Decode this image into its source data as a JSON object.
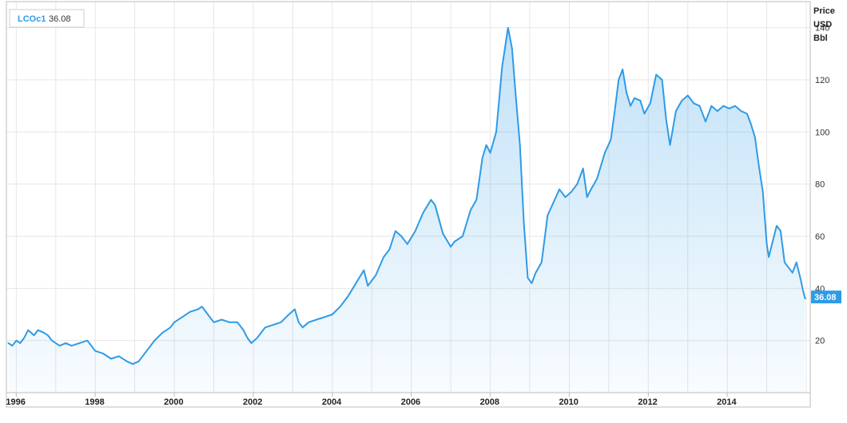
{
  "chart_data": {
    "type": "area",
    "title": "",
    "xlabel": "",
    "ylabel": "Price USD Bbl",
    "unit_lines": [
      "Price",
      "USD",
      "Bbl"
    ],
    "legend": {
      "symbol": "LCOc1",
      "value": "36.08",
      "placement": "top-left"
    },
    "last_value_label": "36.08",
    "xlim": [
      1995.75,
      2016.1
    ],
    "ylim": [
      0,
      150
    ],
    "x_ticks": [
      1996,
      1998,
      2000,
      2002,
      2004,
      2006,
      2008,
      2010,
      2012,
      2014
    ],
    "x_tick_labels": [
      "1996",
      "1998",
      "2000",
      "2002",
      "2004",
      "2006",
      "2008",
      "2010",
      "2012",
      "2014"
    ],
    "y_ticks": [
      20,
      40,
      60,
      80,
      100,
      120,
      140
    ],
    "y_tick_labels": [
      "20",
      "40",
      "60",
      "80",
      "100",
      "120",
      "140"
    ],
    "x_minor_gridlines": [
      1996,
      1997,
      1998,
      1999,
      2000,
      2001,
      2002,
      2003,
      2004,
      2005,
      2006,
      2007,
      2008,
      2009,
      2010,
      2011,
      2012,
      2013,
      2014,
      2015,
      2016
    ],
    "grid": true,
    "colors": {
      "line": "#2e9be6",
      "fill": "#2e9be6",
      "grid": "#e6e6e6",
      "frame": "#bdbdbd",
      "tag": "#2e9be6"
    },
    "series": [
      {
        "name": "LCOc1",
        "x": [
          1995.8,
          1995.9,
          1996.0,
          1996.1,
          1996.2,
          1996.3,
          1996.45,
          1996.55,
          1996.7,
          1996.8,
          1996.9,
          1997.0,
          1997.1,
          1997.25,
          1997.4,
          1997.6,
          1997.8,
          1997.9,
          1998.0,
          1998.2,
          1998.4,
          1998.6,
          1998.8,
          1998.95,
          1999.1,
          1999.3,
          1999.5,
          1999.7,
          1999.9,
          2000.0,
          2000.2,
          2000.4,
          2000.6,
          2000.7,
          2000.85,
          2001.0,
          2001.2,
          2001.4,
          2001.6,
          2001.75,
          2001.85,
          2001.95,
          2002.1,
          2002.3,
          2002.5,
          2002.7,
          2002.9,
          2003.05,
          2003.15,
          2003.25,
          2003.4,
          2003.6,
          2003.8,
          2004.0,
          2004.2,
          2004.4,
          2004.6,
          2004.8,
          2004.9,
          2005.1,
          2005.3,
          2005.45,
          2005.6,
          2005.75,
          2005.9,
          2006.1,
          2006.3,
          2006.5,
          2006.6,
          2006.8,
          2007.0,
          2007.1,
          2007.3,
          2007.5,
          2007.65,
          2007.8,
          2007.9,
          2008.0,
          2008.15,
          2008.3,
          2008.45,
          2008.55,
          2008.65,
          2008.75,
          2008.85,
          2008.95,
          2009.05,
          2009.15,
          2009.3,
          2009.45,
          2009.6,
          2009.75,
          2009.9,
          2010.05,
          2010.2,
          2010.35,
          2010.45,
          2010.55,
          2010.7,
          2010.9,
          2011.05,
          2011.15,
          2011.25,
          2011.35,
          2011.45,
          2011.55,
          2011.65,
          2011.8,
          2011.9,
          2012.05,
          2012.2,
          2012.35,
          2012.45,
          2012.55,
          2012.7,
          2012.85,
          2013.0,
          2013.15,
          2013.3,
          2013.45,
          2013.6,
          2013.75,
          2013.9,
          2014.05,
          2014.2,
          2014.35,
          2014.5,
          2014.6,
          2014.7,
          2014.8,
          2014.9,
          2015.0,
          2015.05,
          2015.15,
          2015.25,
          2015.35,
          2015.45,
          2015.55,
          2015.65,
          2015.75,
          2015.85,
          2015.92,
          2015.97
        ],
        "y": [
          19,
          18,
          20,
          19,
          21,
          24,
          22,
          24,
          23,
          22,
          20,
          19,
          18,
          19,
          18,
          19,
          20,
          18,
          16,
          15,
          13,
          14,
          12,
          11,
          12,
          16,
          20,
          23,
          25,
          27,
          29,
          31,
          32,
          33,
          30,
          27,
          28,
          27,
          27,
          24,
          21,
          19,
          21,
          25,
          26,
          27,
          30,
          32,
          27,
          25,
          27,
          28,
          29,
          30,
          33,
          37,
          42,
          47,
          41,
          45,
          52,
          55,
          62,
          60,
          57,
          62,
          69,
          74,
          72,
          61,
          56,
          58,
          60,
          70,
          74,
          90,
          95,
          92,
          100,
          125,
          140,
          132,
          113,
          95,
          65,
          44,
          42,
          46,
          50,
          68,
          73,
          78,
          75,
          77,
          80,
          86,
          75,
          78,
          82,
          92,
          97,
          108,
          120,
          124,
          115,
          110,
          113,
          112,
          107,
          111,
          122,
          120,
          105,
          95,
          108,
          112,
          114,
          111,
          110,
          104,
          110,
          108,
          110,
          109,
          110,
          108,
          107,
          103,
          98,
          87,
          77,
          57,
          52,
          58,
          64,
          62,
          50,
          48,
          46,
          50,
          44,
          39,
          36.08
        ]
      }
    ]
  }
}
